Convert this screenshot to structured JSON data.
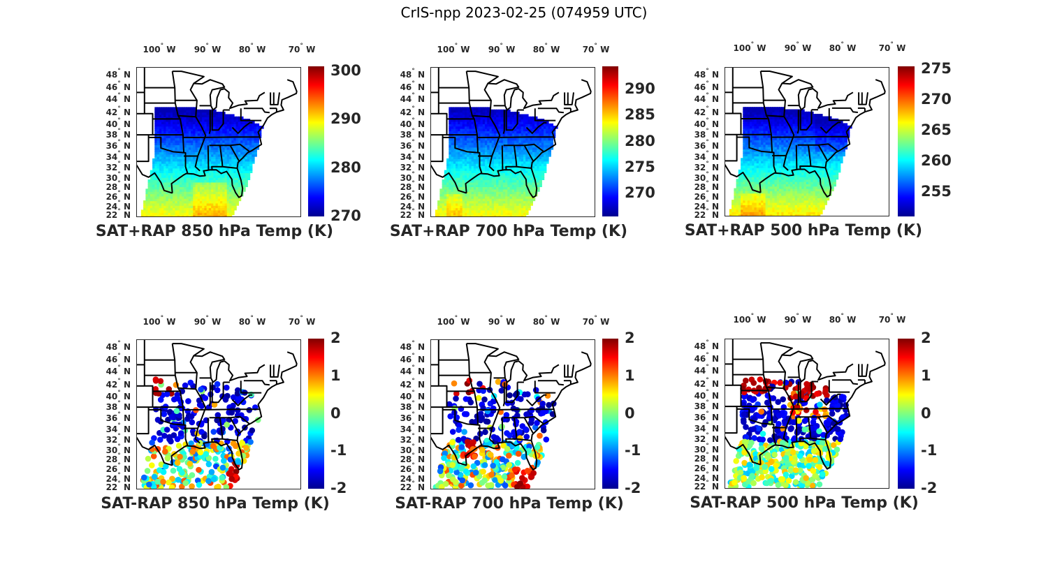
{
  "figure_title": "CrIS-npp 2023-02-25 (074959 UTC)",
  "colors": {
    "jet": [
      "#00008f",
      "#0000ff",
      "#00ffff",
      "#ffff00",
      "#ff0000",
      "#800000"
    ],
    "borders": "#000000",
    "axes": "#262626"
  },
  "chart_data": [
    {
      "type": "heatmap",
      "title": "SAT+RAP 850 hPa Temp (K)",
      "x_ticks": [
        "100° W",
        "90° W",
        "80° W",
        "70° W"
      ],
      "x_tick_values": [
        -100,
        -90,
        -80,
        -70
      ],
      "y_ticks": [
        "48° N",
        "46° N",
        "44° N",
        "42° N",
        "40° N",
        "38° N",
        "36° N",
        "34° N",
        "32° N",
        "30° N",
        "28° N",
        "26° N",
        "24° N",
        "22° N"
      ],
      "colorbar": {
        "min": 270,
        "max": 301,
        "ticks": [
          270,
          280,
          290,
          300
        ],
        "tick_labels": [
          "270",
          "280",
          "290",
          "300"
        ],
        "colormap": "jet"
      },
      "field": "full"
    },
    {
      "type": "heatmap",
      "title": "SAT+RAP 700 hPa Temp (K)",
      "x_ticks": [
        "100° W",
        "90° W",
        "80° W",
        "70° W"
      ],
      "x_tick_values": [
        -100,
        -90,
        -80,
        -70
      ],
      "y_ticks": [
        "48° N",
        "46° N",
        "44° N",
        "42° N",
        "40° N",
        "38° N",
        "36° N",
        "34° N",
        "32° N",
        "30° N",
        "28° N",
        "26° N",
        "24° N",
        "22° N"
      ],
      "colorbar": {
        "min": 265.5,
        "max": 294.5,
        "ticks": [
          270,
          275,
          280,
          285,
          290
        ],
        "tick_labels": [
          "270",
          "275",
          "280",
          "285",
          "290"
        ],
        "colormap": "jet"
      },
      "field": "full"
    },
    {
      "type": "heatmap",
      "title": "SAT+RAP 500 hPa Temp (K)",
      "x_ticks": [
        "100° W",
        "90° W",
        "80° W",
        "70° W"
      ],
      "x_tick_values": [
        -100,
        -90,
        -80,
        -70
      ],
      "y_ticks": [
        "48° N",
        "46° N",
        "44° N",
        "42° N",
        "40° N",
        "38° N",
        "36° N",
        "34° N",
        "32° N",
        "30° N",
        "28° N",
        "26° N",
        "24° N",
        "22° N"
      ],
      "colorbar": {
        "min": 251,
        "max": 275.5,
        "ticks": [
          255,
          260,
          265,
          270,
          275
        ],
        "tick_labels": [
          "255",
          "260",
          "265",
          "270",
          "275"
        ],
        "colormap": "jet"
      },
      "field": "full"
    },
    {
      "type": "scatter",
      "title": "SAT-RAP 850 hPa Temp (K)",
      "x_ticks": [
        "100° W",
        "90° W",
        "80° W",
        "70° W"
      ],
      "x_tick_values": [
        -100,
        -90,
        -80,
        -70
      ],
      "y_ticks": [
        "48° N",
        "46° N",
        "44° N",
        "42° N",
        "40° N",
        "38° N",
        "36° N",
        "34° N",
        "32° N",
        "30° N",
        "28° N",
        "26° N",
        "24° N",
        "22° N"
      ],
      "colorbar": {
        "min": -2,
        "max": 2,
        "ticks": [
          -2,
          -1,
          0,
          1,
          2
        ],
        "tick_labels": [
          "-2",
          "-1",
          "0",
          "1",
          "2"
        ],
        "colormap": "jet"
      },
      "field": "diff"
    },
    {
      "type": "scatter",
      "title": "SAT-RAP 700 hPa Temp (K)",
      "x_ticks": [
        "100° W",
        "90° W",
        "80° W",
        "70° W"
      ],
      "x_tick_values": [
        -100,
        -90,
        -80,
        -70
      ],
      "y_ticks": [
        "48° N",
        "46° N",
        "44° N",
        "42° N",
        "40° N",
        "38° N",
        "36° N",
        "34° N",
        "32° N",
        "30° N",
        "28° N",
        "26° N",
        "24° N",
        "22° N"
      ],
      "colorbar": {
        "min": -2,
        "max": 2,
        "ticks": [
          -2,
          -1,
          0,
          1,
          2
        ],
        "tick_labels": [
          "-2",
          "-1",
          "0",
          "1",
          "2"
        ],
        "colormap": "jet"
      },
      "field": "diff"
    },
    {
      "type": "scatter",
      "title": "SAT-RAP 500 hPa Temp (K)",
      "x_ticks": [
        "100° W",
        "90° W",
        "80° W",
        "70° W"
      ],
      "x_tick_values": [
        -100,
        -90,
        -80,
        -70
      ],
      "y_ticks": [
        "48° N",
        "46° N",
        "44° N",
        "42° N",
        "40° N",
        "38° N",
        "36° N",
        "34° N",
        "32° N",
        "30° N",
        "28° N",
        "26° N",
        "24° N",
        "22° N"
      ],
      "colorbar": {
        "min": -2,
        "max": 2,
        "ticks": [
          -2,
          -1,
          0,
          1,
          2
        ],
        "tick_labels": [
          "-2",
          "-1",
          "0",
          "1",
          "2"
        ],
        "colormap": "jet"
      },
      "field": "diff"
    }
  ]
}
